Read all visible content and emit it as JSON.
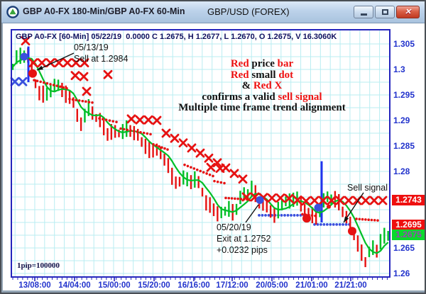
{
  "window": {
    "title_left": "GBP A0-FX 180-Min/GBP A0-FX 60-Min",
    "title_center": "GBP/USD (FOREX)",
    "buttons": [
      "minimize",
      "restore",
      "close"
    ]
  },
  "header": {
    "text": "GBP A0-FX [60-Min] 05/22/19  0.0000 C 1.2675, H 1.2677, L 1.2670, O 1.2675, V 16.3060K"
  },
  "pip_note": "1pip=100000",
  "annotations": {
    "entry": {
      "lines": [
        "05/13/19",
        "Sell at 1.2984"
      ]
    },
    "center": {
      "lines": [
        [
          [
            "Red",
            "red"
          ],
          [
            " price ",
            "black"
          ],
          [
            "bar",
            "red"
          ]
        ],
        [
          [
            "Red",
            "red"
          ],
          [
            " small ",
            "black"
          ],
          [
            "dot",
            "red"
          ]
        ],
        [
          [
            "& ",
            "black"
          ],
          [
            "Red X",
            "red"
          ]
        ],
        [
          [
            "confirms a valid ",
            "black"
          ],
          [
            "sell signal",
            "red"
          ]
        ],
        [
          [
            "Multiple time frame trend alignment",
            "black"
          ]
        ]
      ]
    },
    "sell_signal": {
      "text": "Sell signal"
    },
    "exit": {
      "lines": [
        "05/20/19",
        "Exit at 1.2752",
        "+0.0232 pips"
      ]
    }
  },
  "colors": {
    "red": "#e61212",
    "green": "#00bf26",
    "blue": "#3a50dd",
    "blue_bar": "#2233ee",
    "grid": "#b9edf2",
    "frame": "#2525bd",
    "axis_text": "#2233cc",
    "header_text": "#10105e",
    "tag_red_bg": "#ee0f0f",
    "tag_green_bg": "#09d92c",
    "tag_purple_fg": "#9a46b4",
    "anno_red": "#ee1111",
    "anno_black": "#111111"
  },
  "chart_data": {
    "type": "ohlc_bar",
    "symbol": "GBP/USD (FOREX)",
    "timeframes": [
      "180-Min",
      "60-Min"
    ],
    "last_bar": {
      "date": "05/22/19",
      "open": 1.2675,
      "high": 1.2677,
      "low": 1.267,
      "close": 1.2675,
      "volume": "16.3060K"
    },
    "trade": {
      "entry_date": "05/13/19",
      "entry_price": 1.2984,
      "exit_date": "05/20/19",
      "exit_price": 1.2752,
      "profit_pips": "+0.0232"
    },
    "x_axis": {
      "labels": [
        {
          "text": "13/08:00",
          "x": 47
        },
        {
          "text": "14/04:00",
          "x": 103
        },
        {
          "text": "15/00:00",
          "x": 159
        },
        {
          "text": "15/20:00",
          "x": 215
        },
        {
          "text": "16/16:00",
          "x": 271
        },
        {
          "text": "17/12:00",
          "x": 325
        },
        {
          "text": "20/05:00",
          "x": 381
        },
        {
          "text": "21/01:00",
          "x": 437
        },
        {
          "text": "21/21:00",
          "x": 492
        }
      ]
    },
    "y_axis": {
      "ylim": [
        1.2593,
        1.3078
      ],
      "labels": [
        1.305,
        1.3,
        1.295,
        1.29,
        1.285,
        1.28,
        1.265,
        1.26
      ],
      "label_texts": [
        "1.305",
        "1.3",
        "1.295",
        "1.29",
        "1.285",
        "1.28",
        "1.265",
        "1.26"
      ],
      "price_tags": [
        {
          "text": "1.2743",
          "price": 1.2743,
          "bg": "tag_red_bg",
          "fg": "#ffffff"
        },
        {
          "text": "1.2695",
          "price": 1.2695,
          "bg": "tag_red_bg",
          "fg": "#ffffff"
        },
        {
          "text": "1.2675",
          "price": 1.2675,
          "bg": "tag_green_bg",
          "fg": "tag_purple_fg"
        }
      ]
    },
    "price_keyframes": [
      [
        16,
        1.3005
      ],
      [
        22,
        1.3018
      ],
      [
        30,
        1.3028
      ],
      [
        36,
        1.303
      ],
      [
        42,
        1.2995
      ],
      [
        48,
        1.2975
      ],
      [
        56,
        1.295
      ],
      [
        64,
        1.2958
      ],
      [
        72,
        1.2968
      ],
      [
        82,
        1.2965
      ],
      [
        90,
        1.2952
      ],
      [
        98,
        1.2938
      ],
      [
        104,
        1.292
      ],
      [
        110,
        1.289
      ],
      [
        116,
        1.2908
      ],
      [
        122,
        1.2928
      ],
      [
        128,
        1.2922
      ],
      [
        136,
        1.2902
      ],
      [
        144,
        1.2886
      ],
      [
        152,
        1.2874
      ],
      [
        160,
        1.2868
      ],
      [
        170,
        1.2878
      ],
      [
        180,
        1.2886
      ],
      [
        190,
        1.2879
      ],
      [
        200,
        1.2853
      ],
      [
        208,
        1.2846
      ],
      [
        216,
        1.2836
      ],
      [
        224,
        1.2829
      ],
      [
        232,
        1.2823
      ],
      [
        240,
        1.2789
      ],
      [
        248,
        1.2783
      ],
      [
        256,
        1.2786
      ],
      [
        264,
        1.2789
      ],
      [
        272,
        1.2783
      ],
      [
        280,
        1.2766
      ],
      [
        288,
        1.2736
      ],
      [
        296,
        1.2729
      ],
      [
        304,
        1.2719
      ],
      [
        312,
        1.2723
      ],
      [
        320,
        1.2729
      ],
      [
        328,
        1.2726
      ],
      [
        336,
        1.2741
      ],
      [
        344,
        1.2753
      ],
      [
        352,
        1.2763
      ],
      [
        360,
        1.2746
      ],
      [
        368,
        1.2736
      ],
      [
        376,
        1.2729
      ],
      [
        384,
        1.2723
      ],
      [
        392,
        1.2729
      ],
      [
        400,
        1.2736
      ],
      [
        408,
        1.2741
      ],
      [
        416,
        1.2743
      ],
      [
        424,
        1.2731
      ],
      [
        432,
        1.2719
      ],
      [
        440,
        1.2713
      ],
      [
        448,
        1.2731
      ],
      [
        456,
        1.2743
      ],
      [
        464,
        1.2749
      ],
      [
        472,
        1.2739
      ],
      [
        480,
        1.2723
      ],
      [
        488,
        1.2703
      ],
      [
        496,
        1.2681
      ],
      [
        504,
        1.2661
      ],
      [
        510,
        1.2636
      ],
      [
        514,
        1.2619
      ],
      [
        518,
        1.2639
      ],
      [
        524,
        1.2653
      ],
      [
        530,
        1.2643
      ],
      [
        536,
        1.2663
      ],
      [
        542,
        1.2673
      ]
    ],
    "bars": {
      "count": 100,
      "x0": 16,
      "dx": 5.34,
      "width": 2.4
    },
    "red_dot_segments": [
      [
        46,
        1.2979,
        92,
        1.2963
      ],
      [
        96,
        1.2942,
        128,
        1.2935
      ],
      [
        138,
        1.2904,
        162,
        1.2897
      ],
      [
        168,
        1.2884,
        210,
        1.2873
      ],
      [
        214,
        1.2853,
        234,
        1.2843
      ],
      [
        258,
        1.2813,
        298,
        1.2791
      ],
      [
        300,
        1.2781,
        314,
        1.2777
      ],
      [
        316,
        1.2748,
        346,
        1.2745
      ],
      [
        424,
        1.2716,
        442,
        1.2713
      ],
      [
        500,
        1.2707,
        530,
        1.2704
      ]
    ],
    "blue_dot_segments": [
      [
        363,
        1.2714,
        426,
        1.2714
      ],
      [
        441,
        1.2696,
        490,
        1.2696
      ]
    ],
    "x_marks": {
      "red": [
        [
          34,
          1.3056
        ],
        [
          45,
          1.3013
        ],
        [
          57,
          1.3013
        ],
        [
          69,
          1.3013
        ],
        [
          81,
          1.3013
        ],
        [
          93,
          1.3013
        ],
        [
          105,
          1.3013
        ],
        [
          117,
          1.3013
        ],
        [
          104,
          1.2988
        ],
        [
          116,
          1.2986
        ],
        [
          150,
          1.299
        ],
        [
          120,
          1.2957
        ],
        [
          183,
          1.2903
        ],
        [
          195,
          1.2901
        ],
        [
          207,
          1.2901
        ],
        [
          219,
          1.29
        ],
        [
          232,
          1.2875
        ],
        [
          244,
          1.2865
        ],
        [
          256,
          1.2856
        ],
        [
          268,
          1.2846
        ],
        [
          280,
          1.2836
        ],
        [
          292,
          1.2826
        ],
        [
          304,
          1.2817
        ],
        [
          316,
          1.2807
        ],
        [
          328,
          1.2796
        ],
        [
          340,
          1.2785
        ],
        [
          295,
          1.2808
        ],
        [
          308,
          1.2806
        ],
        [
          345,
          1.275
        ],
        [
          357,
          1.275
        ],
        [
          369,
          1.2749
        ],
        [
          381,
          1.2748
        ],
        [
          393,
          1.2748
        ],
        [
          405,
          1.2747
        ],
        [
          417,
          1.2744
        ],
        [
          429,
          1.2742
        ],
        [
          441,
          1.2743
        ],
        [
          453,
          1.2743
        ],
        [
          465,
          1.2743
        ],
        [
          477,
          1.2743
        ],
        [
          489,
          1.2743
        ],
        [
          501,
          1.2743
        ],
        [
          513,
          1.2743
        ],
        [
          525,
          1.2743
        ],
        [
          537,
          1.2743
        ]
      ],
      "blue": [
        [
          19,
          1.2976
        ],
        [
          30,
          1.2976
        ]
      ]
    },
    "big_dots": {
      "blue": [
        [
          32,
          1.3025
        ],
        [
          364,
          1.2744
        ],
        [
          446,
          1.2729
        ]
      ],
      "red": [
        [
          44,
          1.2992
        ],
        [
          430,
          1.2708
        ],
        [
          494,
          1.2683
        ]
      ],
      "red_small": [
        [
          461,
          1.2731
        ]
      ]
    },
    "blue_bars": [
      {
        "x": 38,
        "top": 1.3045,
        "bottom": 1.2975
      },
      {
        "x": 451,
        "top": 1.282,
        "bottom": 1.27
      }
    ],
    "arrows": [
      {
        "from": [
          102,
          73
        ],
        "to": [
          50,
          97
        ],
        "head": true,
        "name": "entry-arrow"
      },
      {
        "from": [
          510,
          270
        ],
        "to": [
          482,
          312
        ],
        "head": true,
        "name": "sell-signal-arrow"
      },
      {
        "from": [
          344,
          312
        ],
        "to": [
          362,
          287
        ],
        "head": false,
        "name": "exit-pointer-line"
      }
    ]
  }
}
